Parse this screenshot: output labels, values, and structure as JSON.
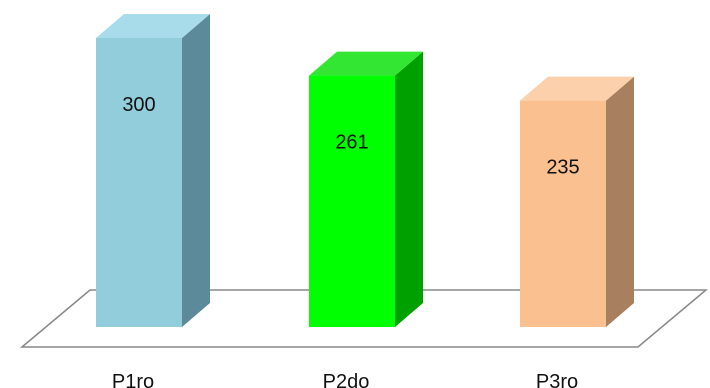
{
  "chart_data": {
    "type": "bar",
    "style": "3d-column",
    "categories": [
      "P1ro",
      "P2do",
      "P3ro"
    ],
    "values": [
      300,
      261,
      235
    ],
    "title": "",
    "xlabel": "",
    "ylabel": "",
    "ylim": [
      0,
      300
    ],
    "grid": false,
    "legend": "none",
    "data_labels": "inside",
    "colors": [
      {
        "front": "#92CDDC",
        "side": "#5D8A9A",
        "top": "#A9DCEB"
      },
      {
        "front": "#00FF00",
        "side": "#00A000",
        "top": "#33E633"
      },
      {
        "front": "#FAC090",
        "side": "#A88060",
        "top": "#FBD0AA"
      }
    ],
    "floor_color": "#ffffff",
    "floor_stroke": "#888888"
  }
}
